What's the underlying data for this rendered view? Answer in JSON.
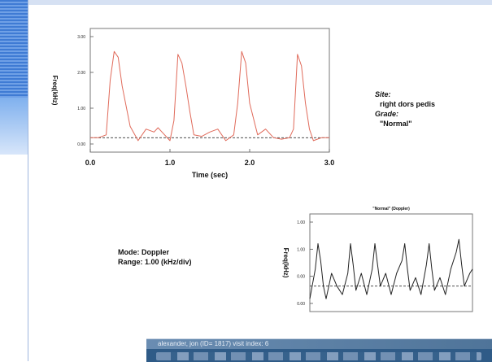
{
  "chart_data": [
    {
      "type": "line",
      "title": "",
      "xlabel": "Time (sec)",
      "ylabel": "Freq(kHz)",
      "xlim": [
        0,
        3
      ],
      "ylim": [
        -0.5,
        3.8
      ],
      "xticks": [
        "0.0",
        "1.0",
        "2.0",
        "3.0"
      ],
      "yticks": [
        "3.00",
        "2.00",
        "1.00",
        "0.00"
      ],
      "series": [
        {
          "x": [
            0.0,
            0.1,
            0.2,
            0.25,
            0.3,
            0.35,
            0.4,
            0.5,
            0.6,
            0.7,
            0.8,
            0.85,
            0.9,
            1.0,
            1.05,
            1.1,
            1.15,
            1.2,
            1.25,
            1.3,
            1.4,
            1.5,
            1.6,
            1.7,
            1.8,
            1.85,
            1.9,
            1.95,
            2.0,
            2.1,
            2.2,
            2.3,
            2.4,
            2.5,
            2.55,
            2.6,
            2.65,
            2.7,
            2.75,
            2.8,
            2.9,
            3.0
          ],
          "y": [
            0.0,
            0.0,
            0.1,
            2.0,
            3.0,
            2.8,
            1.8,
            0.4,
            -0.1,
            0.3,
            0.2,
            0.35,
            0.2,
            -0.1,
            0.6,
            2.9,
            2.6,
            1.8,
            0.9,
            0.1,
            0.05,
            0.2,
            0.3,
            -0.1,
            0.1,
            1.2,
            3.0,
            2.6,
            1.2,
            0.1,
            0.3,
            0.0,
            -0.05,
            0.0,
            0.3,
            2.9,
            2.5,
            1.2,
            0.3,
            -0.1,
            0.0,
            0.0
          ]
        }
      ],
      "baseline": 0.0,
      "grid": false
    },
    {
      "type": "line",
      "title": "\"Normal\" (Doppler)",
      "xlabel": "",
      "ylabel": "Freq(kHz)",
      "xlim": [
        0,
        3
      ],
      "ylim": [
        -0.6,
        1.7
      ],
      "yticks": [
        "1.00",
        "1.00",
        "0.00",
        "0.00"
      ],
      "series": [
        {
          "x": [
            0.0,
            0.1,
            0.15,
            0.2,
            0.25,
            0.3,
            0.4,
            0.5,
            0.6,
            0.7,
            0.75,
            0.8,
            0.85,
            0.95,
            1.05,
            1.15,
            1.2,
            1.25,
            1.3,
            1.4,
            1.5,
            1.6,
            1.7,
            1.75,
            1.8,
            1.85,
            1.95,
            2.05,
            2.15,
            2.2,
            2.25,
            2.3,
            2.4,
            2.5,
            2.6,
            2.7,
            2.75,
            2.8,
            2.85,
            2.95,
            3.0
          ],
          "y": [
            -0.3,
            0.4,
            1.0,
            0.6,
            0.0,
            -0.3,
            0.3,
            0.0,
            -0.2,
            0.3,
            1.0,
            0.5,
            -0.1,
            0.3,
            -0.2,
            0.4,
            1.0,
            0.5,
            0.0,
            0.3,
            -0.2,
            0.3,
            0.6,
            1.0,
            0.4,
            -0.1,
            0.2,
            -0.2,
            0.5,
            1.0,
            0.4,
            -0.1,
            0.2,
            -0.2,
            0.4,
            0.8,
            1.1,
            0.5,
            0.0,
            0.3,
            0.4
          ]
        }
      ],
      "baseline": 0.0,
      "grid": false
    }
  ],
  "side_info": {
    "site_label": "Site:",
    "site_value": "right dors pedis",
    "grade_label": "Grade:",
    "grade_value": "\"Normal\""
  },
  "mode_info": {
    "mode_line": "Mode:  Doppler",
    "range_line": "Range:  1.00 (kHz/div)"
  },
  "window": {
    "caption": "alexander, jon (ID= 1817) visit index: 6"
  },
  "colors": {
    "trace1": "#e06a5a",
    "trace2": "#222222",
    "baseline": "#333333",
    "bg_blue": "#3f7bd4",
    "titlebar": "#2f5b87"
  }
}
